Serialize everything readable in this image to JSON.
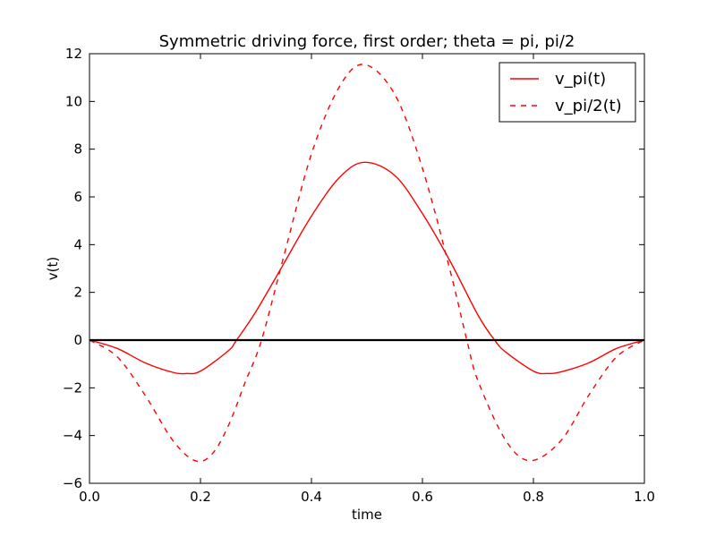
{
  "chart_data": {
    "type": "line",
    "title": "Symmetric driving force, first order; theta = pi, pi/2",
    "xlabel": "time",
    "ylabel": "v(t)",
    "xlim": [
      0,
      1
    ],
    "ylim": [
      -6,
      12
    ],
    "xticks": [
      "0.0",
      "0.2",
      "0.4",
      "0.6",
      "0.8",
      "1.0"
    ],
    "yticks": [
      "−6",
      "−4",
      "−2",
      "0",
      "2",
      "4",
      "6",
      "8",
      "10",
      "12"
    ],
    "grid": false,
    "legend_position": "top-right",
    "zero_line": true,
    "series": [
      {
        "name": "v_pi(t)",
        "color": "#ff0000",
        "style": "solid",
        "x": [
          0.0,
          0.05,
          0.1,
          0.15,
          0.175,
          0.2,
          0.25,
          0.265,
          0.3,
          0.35,
          0.4,
          0.45,
          0.495,
          0.55,
          0.6,
          0.65,
          0.7,
          0.73,
          0.75,
          0.8,
          0.825,
          0.85,
          0.9,
          0.95,
          1.0
        ],
        "values": [
          0.0,
          -0.35,
          -0.95,
          -1.35,
          -1.4,
          -1.3,
          -0.45,
          0.0,
          1.2,
          3.2,
          5.2,
          6.8,
          7.45,
          6.9,
          5.3,
          3.3,
          1.05,
          0.0,
          -0.5,
          -1.3,
          -1.4,
          -1.33,
          -0.95,
          -0.35,
          0.0
        ]
      },
      {
        "name": "v_pi/2(t)",
        "color": "#ff0000",
        "style": "dashed",
        "x": [
          0.0,
          0.05,
          0.1,
          0.15,
          0.19,
          0.22,
          0.25,
          0.28,
          0.31,
          0.35,
          0.4,
          0.45,
          0.495,
          0.55,
          0.6,
          0.65,
          0.68,
          0.7,
          0.75,
          0.795,
          0.85,
          0.9,
          0.95,
          1.0
        ],
        "values": [
          0.0,
          -0.7,
          -2.3,
          -4.2,
          -5.05,
          -4.8,
          -3.6,
          -1.8,
          0.0,
          3.5,
          7.8,
          10.6,
          11.55,
          10.3,
          7.2,
          2.9,
          0.0,
          -1.7,
          -4.2,
          -5.05,
          -4.2,
          -2.3,
          -0.7,
          0.0
        ]
      }
    ]
  }
}
